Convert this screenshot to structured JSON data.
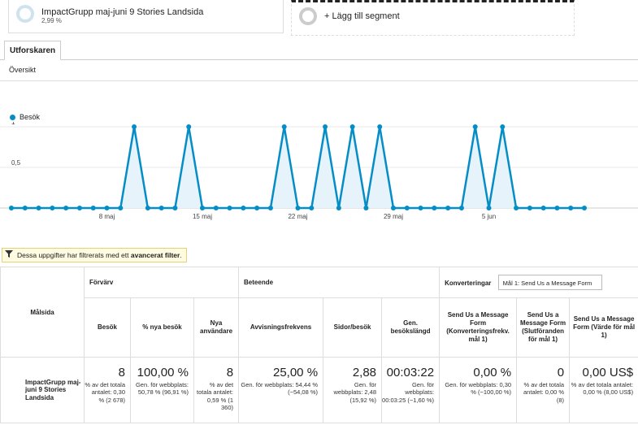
{
  "segments": [
    {
      "name": "ImpactGrupp maj-juni 9 Stories Landsida",
      "percent": "2,99 %"
    },
    {
      "name": "+ Lägg till segment"
    }
  ],
  "tabs": [
    {
      "label": "Utforskaren"
    }
  ],
  "subnav": {
    "label": "Översikt"
  },
  "colors": {
    "accent": "#058dc7",
    "area_fill": "#e6f3fa",
    "filter_bg": "#fffbe0"
  },
  "chart_data": {
    "type": "line",
    "series": [
      {
        "name": "Besök",
        "values": [
          0,
          0,
          0,
          0,
          0,
          0,
          0,
          0,
          0,
          1,
          0,
          0,
          0,
          1,
          0,
          0,
          0,
          0,
          0,
          0,
          1,
          0,
          0,
          1,
          0,
          1,
          0,
          1,
          0,
          0,
          0,
          0,
          0,
          0,
          1,
          0,
          1,
          0,
          0,
          0,
          0,
          0,
          0
        ]
      }
    ],
    "yticks": [
      "1",
      "0,5"
    ],
    "ylim": [
      0,
      1
    ],
    "xticks": [
      {
        "label": "8 maj",
        "index": 7
      },
      {
        "label": "15 maj",
        "index": 14
      },
      {
        "label": "22 maj",
        "index": 21
      },
      {
        "label": "29 maj",
        "index": 28
      },
      {
        "label": "5 jun",
        "index": 35
      }
    ],
    "grid": true
  },
  "filter_notice": {
    "prefix": "Dessa uppgifter har filtrerats med ett",
    "bold": "avancerat filter",
    "suffix": "."
  },
  "table": {
    "row_header": "Målsida",
    "groups": {
      "acquisition": "Förvärv",
      "behavior": "Beteende",
      "conversions": "Konverteringar"
    },
    "goal_select": "Mål 1: Send Us a Message Form",
    "columns": [
      "Besök",
      "% nya besök",
      "Nya användare",
      "Avvisningsfrekvens",
      "Sidor/besök",
      "Gen. besökslängd",
      "Send Us a Message Form (Konverteringsfrekv. mål 1)",
      "Send Us a Message Form (Slutföranden för mål 1)",
      "Send Us a Message Form (Värde för mål 1)"
    ],
    "row": {
      "label": "ImpactGrupp maj-juni 9 Stories Landsida",
      "cells": [
        {
          "value": "8",
          "sub": "% av det totala antalet: 0,30 % (2 678)"
        },
        {
          "value": "100,00 %",
          "sub": "Gen. för webbplats: 50,78 % (96,91 %)"
        },
        {
          "value": "8",
          "sub": "% av det totala antalet: 0,59 % (1 360)"
        },
        {
          "value": "25,00 %",
          "sub": "Gen. för webbplats: 54,44 % (−54,08 %)"
        },
        {
          "value": "2,88",
          "sub": "Gen. för webbplats: 2,48 (15,92 %)"
        },
        {
          "value": "00:03:22",
          "sub": "Gen. för webbplats: 00:03:25 (−1,60 %)"
        },
        {
          "value": "0,00 %",
          "sub": "Gen. för webbplats: 0,30 % (−100,00 %)"
        },
        {
          "value": "0",
          "sub": "% av det totala antalet: 0,00 % (8)"
        },
        {
          "value": "0,00 US$",
          "sub": "% av det totala antalet: 0,00 % (8,00 US$)"
        }
      ]
    }
  }
}
